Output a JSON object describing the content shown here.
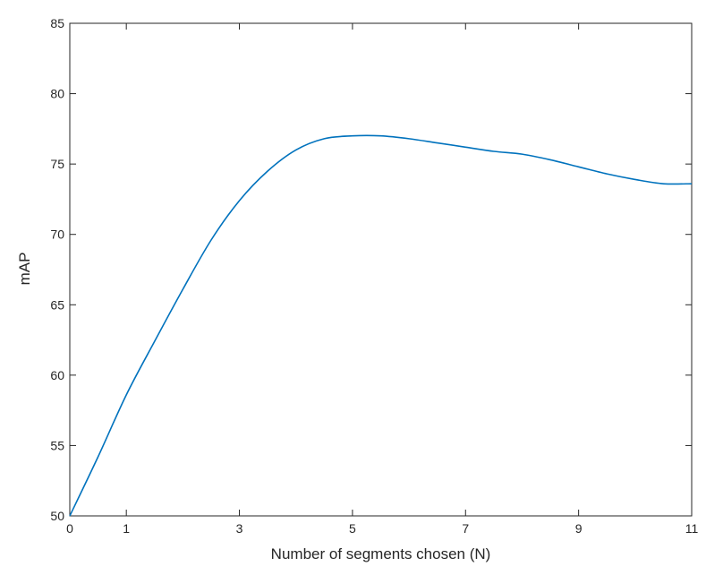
{
  "chart_data": {
    "type": "line",
    "title": "",
    "xlabel": "Number of segments chosen (N)",
    "ylabel": "mAP",
    "xlim": [
      0,
      11
    ],
    "ylim": [
      50,
      85
    ],
    "x_ticks": [
      0,
      1,
      3,
      5,
      7,
      9,
      11
    ],
    "y_ticks": [
      50,
      55,
      60,
      65,
      70,
      75,
      80,
      85
    ],
    "grid": false,
    "legend": "none",
    "series": [
      {
        "color": "#0072BD",
        "points": [
          [
            0,
            50.0
          ],
          [
            0.5,
            54.2
          ],
          [
            1,
            58.6
          ],
          [
            1.5,
            62.4
          ],
          [
            2,
            66.1
          ],
          [
            2.5,
            69.6
          ],
          [
            3,
            72.4
          ],
          [
            3.5,
            74.5
          ],
          [
            4,
            76.0
          ],
          [
            4.5,
            76.8
          ],
          [
            5,
            77.0
          ],
          [
            5.5,
            77.0
          ],
          [
            6,
            76.8
          ],
          [
            6.5,
            76.5
          ],
          [
            7,
            76.2
          ],
          [
            7.5,
            75.9
          ],
          [
            8,
            75.7
          ],
          [
            8.5,
            75.3
          ],
          [
            9,
            74.8
          ],
          [
            9.5,
            74.3
          ],
          [
            10,
            73.9
          ],
          [
            10.5,
            73.6
          ],
          [
            11,
            73.6
          ]
        ]
      }
    ]
  }
}
